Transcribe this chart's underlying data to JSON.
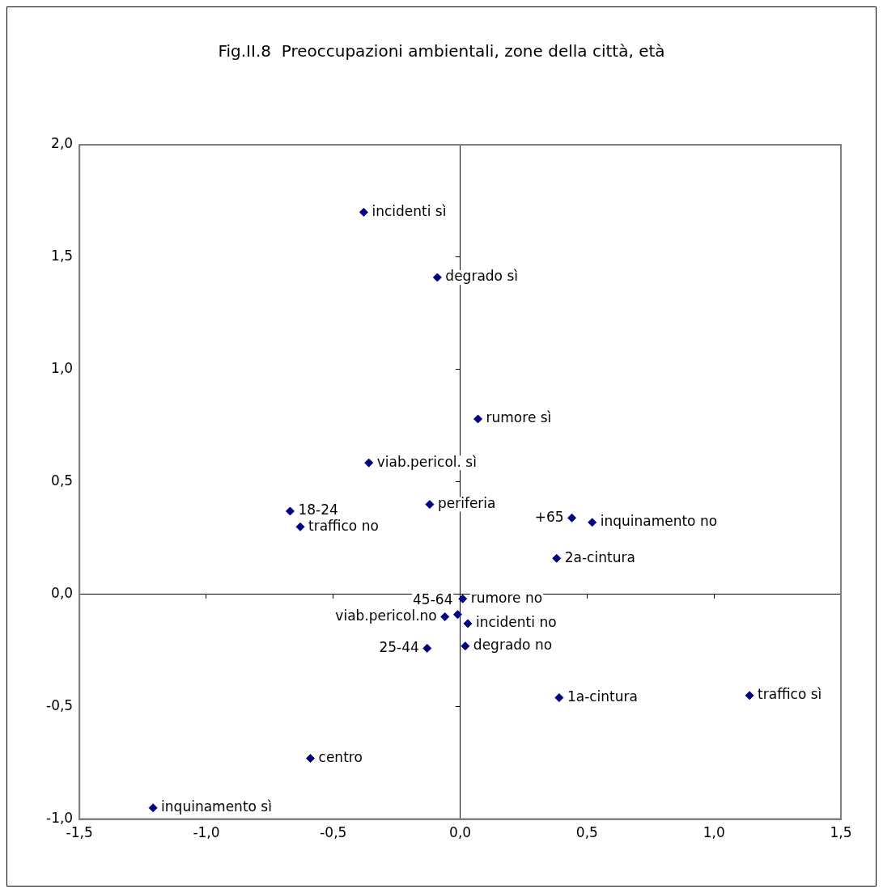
{
  "chart_data": {
    "type": "scatter",
    "title": "Fig.II.8  Preoccupazioni ambientali, zone della città, età",
    "x": [
      -0.38,
      -0.09,
      0.07,
      -0.36,
      -0.12,
      -0.67,
      -0.63,
      0.44,
      0.52,
      0.38,
      0.01,
      -0.01,
      -0.06,
      0.03,
      -0.13,
      0.02,
      0.39,
      1.14,
      -0.59,
      -1.21
    ],
    "values": [
      1.7,
      1.41,
      0.78,
      0.585,
      0.4,
      0.37,
      0.3,
      0.34,
      0.32,
      0.16,
      -0.02,
      -0.09,
      -0.1,
      -0.13,
      -0.24,
      -0.23,
      -0.46,
      -0.45,
      -0.73,
      -0.95
    ],
    "annotations": [
      {
        "text": "incidenti sì",
        "x": -0.38,
        "y": 1.7
      },
      {
        "text": "degrado sì",
        "x": -0.09,
        "y": 1.41
      },
      {
        "text": "rumore sì",
        "x": 0.07,
        "y": 0.78
      },
      {
        "text": "viab.pericol. sì",
        "x": -0.36,
        "y": 0.585
      },
      {
        "text": "periferia",
        "x": -0.12,
        "y": 0.4
      },
      {
        "text": "18-24",
        "x": -0.67,
        "y": 0.37
      },
      {
        "text": "traffico no",
        "x": -0.63,
        "y": 0.3
      },
      {
        "text": "+65",
        "x": 0.44,
        "y": 0.34
      },
      {
        "text": "inquinamento no",
        "x": 0.52,
        "y": 0.32
      },
      {
        "text": "2a-cintura",
        "x": 0.38,
        "y": 0.16
      },
      {
        "text": "rumore no",
        "x": 0.01,
        "y": -0.02
      },
      {
        "text": "45-64",
        "x": -0.01,
        "y": -0.09
      },
      {
        "text": "viab.pericol.no",
        "x": -0.06,
        "y": -0.1
      },
      {
        "text": "incidenti no",
        "x": 0.03,
        "y": -0.13
      },
      {
        "text": "25-44",
        "x": -0.13,
        "y": -0.24
      },
      {
        "text": "degrado no",
        "x": 0.02,
        "y": -0.23
      },
      {
        "text": "1a-cintura",
        "x": 0.39,
        "y": -0.46
      },
      {
        "text": "traffico sì",
        "x": 1.14,
        "y": -0.45
      },
      {
        "text": "centro",
        "x": -0.59,
        "y": -0.73
      },
      {
        "text": "inquinamento sì",
        "x": -1.21,
        "y": -0.95
      }
    ],
    "color": "#000080",
    "marker": "diamond",
    "legend": false,
    "xlim": [
      -1.5,
      1.5
    ],
    "xticks": [
      {
        "value": -1.5,
        "label": "-1,5"
      },
      {
        "value": -1.0,
        "label": "-1,0"
      },
      {
        "value": -0.5,
        "label": "-0,5"
      },
      {
        "value": 0,
        "label": "0,0"
      },
      {
        "value": 0.5,
        "label": "0,5"
      },
      {
        "value": 1.0,
        "label": "1,0"
      },
      {
        "value": 1.5,
        "label": "1,5"
      }
    ],
    "ylim": [
      -1.0,
      2.0
    ],
    "yticks": [
      {
        "value": -1.0,
        "label": "-1,0"
      },
      {
        "value": -0.5,
        "label": "-0,5"
      },
      {
        "value": 0,
        "label": "0,0"
      },
      {
        "value": 0.5,
        "label": "0,5"
      },
      {
        "value": 1.0,
        "label": "1,0"
      },
      {
        "value": 1.5,
        "label": "1,5"
      },
      {
        "value": 2.0,
        "label": "2,0"
      }
    ]
  }
}
